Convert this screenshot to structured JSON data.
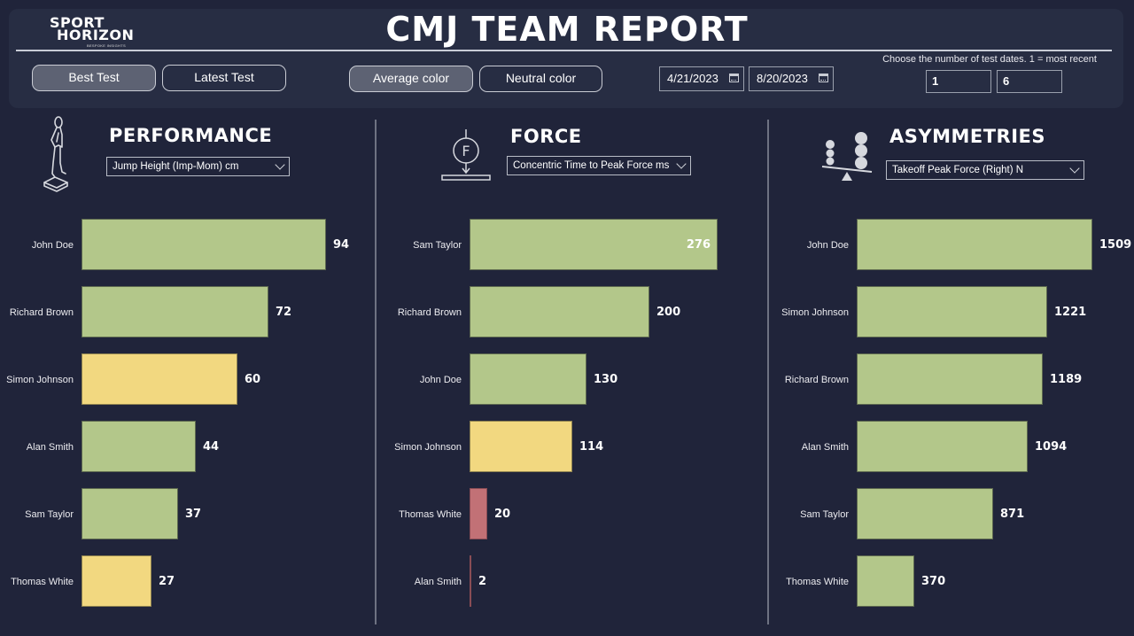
{
  "header": {
    "logo": {
      "line1": "SPORT",
      "line2": "HORIZON",
      "tagline": "BESPOKE INSIGHTS"
    },
    "title": "CMJ TEAM REPORT",
    "test_buttons": [
      {
        "label": "Best Test",
        "active": true
      },
      {
        "label": "Latest Test",
        "active": false
      }
    ],
    "color_buttons": [
      {
        "label": "Average color",
        "active": true
      },
      {
        "label": "Neutral color",
        "active": false
      }
    ],
    "date_range": {
      "start": "4/21/2023",
      "end": "8/20/2023"
    },
    "test_dates": {
      "caption": "Choose the number of test dates. 1 = most recent",
      "min": "1",
      "max": "6"
    }
  },
  "colors": {
    "good": "#b3c78a",
    "average": "#f2d880",
    "poor": "#c27176",
    "background": "#20243a",
    "panel": "#272d43"
  },
  "sections": [
    {
      "title": "PERFORMANCE",
      "icon": "jumper-icon",
      "metric": "Jump Height (Imp-Mom) cm"
    },
    {
      "title": "FORCE",
      "icon": "force-plate-icon",
      "metric": "Concentric Time to Peak Force ms"
    },
    {
      "title": "ASYMMETRIES",
      "icon": "balance-scale-icon",
      "metric": "Takeoff Peak Force (Right) N"
    }
  ],
  "chart_data": [
    {
      "type": "bar",
      "orientation": "horizontal",
      "title": "PERFORMANCE",
      "metric": "Jump Height (Imp-Mom) cm",
      "categories": [
        "John Doe",
        "Richard Brown",
        "Simon Johnson",
        "Alan Smith",
        "Sam Taylor",
        "Thomas White"
      ],
      "values": [
        94,
        72,
        60,
        44,
        37,
        27
      ],
      "value_labels": [
        "94",
        "72",
        "60",
        "44",
        "37",
        "27"
      ],
      "bar_status": [
        "good",
        "good",
        "average",
        "good",
        "good",
        "average"
      ],
      "xlim": [
        0,
        94
      ]
    },
    {
      "type": "bar",
      "orientation": "horizontal",
      "title": "FORCE",
      "metric": "Concentric Time to Peak Force ms",
      "categories": [
        "Sam Taylor",
        "Richard Brown",
        "John Doe",
        "Simon Johnson",
        "Thomas White",
        "Alan Smith"
      ],
      "values": [
        276,
        200,
        130,
        114,
        20,
        2
      ],
      "value_labels": [
        "276",
        "200",
        "130",
        "114",
        "20",
        "2"
      ],
      "bar_status": [
        "good",
        "good",
        "good",
        "average",
        "poor",
        "poor"
      ],
      "xlim": [
        0,
        276
      ]
    },
    {
      "type": "bar",
      "orientation": "horizontal",
      "title": "ASYMMETRIES",
      "metric": "Takeoff Peak Force (Right) N",
      "categories": [
        "John Doe",
        "Simon Johnson",
        "Richard Brown",
        "Alan Smith",
        "Sam Taylor",
        "Thomas White"
      ],
      "values": [
        1509,
        1221,
        1189,
        1094,
        871,
        370
      ],
      "value_labels": [
        "1509",
        "1221",
        "1189",
        "1094",
        "871",
        "370"
      ],
      "bar_status": [
        "good",
        "good",
        "good",
        "good",
        "good",
        "good"
      ],
      "xlim": [
        0,
        1509
      ]
    }
  ]
}
